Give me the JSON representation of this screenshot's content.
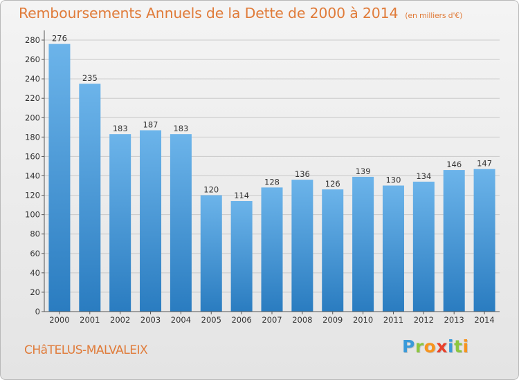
{
  "header": {
    "title": "Remboursements Annuels de la Dette de 2000 à 2014",
    "unit": "(en milliers d'€)"
  },
  "footer": {
    "commune": "CHâTELUS-MALVALEIX",
    "brand": "Proxiti",
    "brand_letters": [
      {
        "char": "P",
        "color": "#3a9ad9"
      },
      {
        "char": "r",
        "color": "#8cc63f"
      },
      {
        "char": "o",
        "color": "#f7941d"
      },
      {
        "char": "x",
        "color": "#e8412c"
      },
      {
        "char": "i",
        "color": "#3a9ad9"
      },
      {
        "char": "t",
        "color": "#8cc63f"
      },
      {
        "char": "i",
        "color": "#f7941d"
      }
    ]
  },
  "colors": {
    "accent": "#e07b39",
    "bar_top": "#6cb4ea",
    "bar_bottom": "#2a7cc0",
    "grid": "#c9c9c9"
  },
  "chart_data": {
    "type": "bar",
    "categories": [
      "2000",
      "2001",
      "2002",
      "2003",
      "2004",
      "2005",
      "2006",
      "2007",
      "2008",
      "2009",
      "2010",
      "2011",
      "2012",
      "2013",
      "2014"
    ],
    "values": [
      276,
      235,
      183,
      187,
      183,
      120,
      114,
      128,
      136,
      126,
      139,
      130,
      134,
      146,
      147
    ],
    "title": "Remboursements Annuels de la Dette de 2000 à 2014",
    "xlabel": "",
    "ylabel": "",
    "ylim": [
      0,
      280
    ],
    "yticks": [
      0,
      20,
      40,
      60,
      80,
      100,
      120,
      140,
      160,
      180,
      200,
      220,
      240,
      260,
      280
    ],
    "grid": true,
    "data_labels": true
  }
}
